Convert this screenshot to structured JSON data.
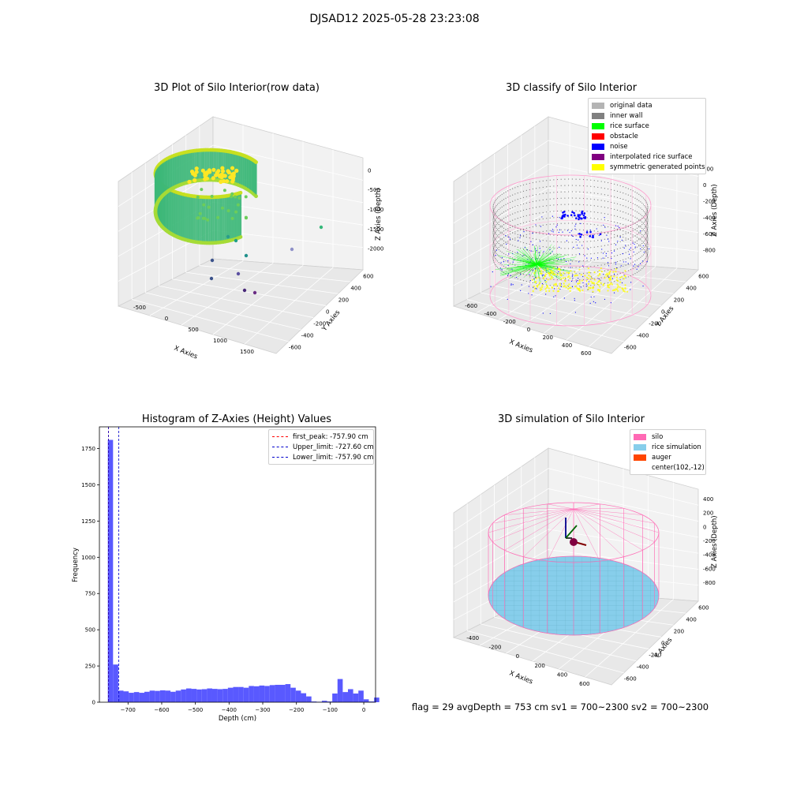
{
  "figure": {
    "suptitle": "DJSAD12 2025-05-28 23:23:08",
    "status_line": "flag = 29  avgDepth = 753 cm  sv1 = 700~2300  sv2 = 700~2300"
  },
  "chart_data": [
    {
      "type": "scatter3d",
      "title": "3D Plot of Silo Interior(row data)",
      "xlabel": "X Axies",
      "ylabel": "Y Axies",
      "zlabel": "Z Axies (Depth)",
      "x_ticks": [
        "-500",
        "0",
        "500",
        "1000",
        "1500"
      ],
      "y_ticks": [
        "-600",
        "-400",
        "-200",
        "0",
        "200",
        "400",
        "600"
      ],
      "z_ticks": [
        "0",
        "-500",
        "-1000",
        "-1500",
        "-2000"
      ],
      "xlim": [
        -700,
        1800
      ],
      "ylim": [
        -700,
        700
      ],
      "zlim": [
        -2200,
        100
      ],
      "colormap": "viridis",
      "point_color": "#21a685"
    },
    {
      "type": "scatter3d",
      "title": "3D classify of Silo Interior",
      "xlabel": "X Axies",
      "ylabel": "Y Axies",
      "zlabel": "Z Axies (Depth)",
      "x_ticks": [
        "-600",
        "-400",
        "-200",
        "0",
        "200",
        "400",
        "600"
      ],
      "y_ticks": [
        "-600",
        "-400",
        "-200",
        "0",
        "200",
        "400",
        "600"
      ],
      "z_ticks": [
        "200",
        "0",
        "-200",
        "-400",
        "-600",
        "-800"
      ],
      "legend": [
        {
          "label": "original data",
          "color": "#b4b4b4"
        },
        {
          "label": "inner wall",
          "color": "#808080"
        },
        {
          "label": "rice surface",
          "color": "#00ff00"
        },
        {
          "label": "obstacle",
          "color": "#ff0000"
        },
        {
          "label": "noise",
          "color": "#0000ff"
        },
        {
          "label": "interpolated rice surface",
          "color": "#800080"
        },
        {
          "label": "symmetric generated points",
          "color": "#ffff00"
        }
      ],
      "outline_color": "#ff99cc"
    },
    {
      "type": "bar",
      "title": "Histogram of Z-Axies (Height) Values",
      "xlabel": "Depth (cm)",
      "ylabel": "Frequency",
      "xlim": [
        -785,
        35
      ],
      "ylim": [
        0,
        1900
      ],
      "x_ticks": [
        -700,
        -600,
        -500,
        -400,
        -300,
        -200,
        -100,
        0
      ],
      "y_ticks": [
        0,
        250,
        500,
        750,
        1000,
        1250,
        1500,
        1750
      ],
      "bin_width": 15.5,
      "bin_start": -760,
      "values": [
        1810,
        260,
        80,
        75,
        65,
        70,
        65,
        72,
        80,
        78,
        82,
        80,
        72,
        80,
        88,
        95,
        92,
        88,
        90,
        95,
        92,
        90,
        92,
        100,
        105,
        105,
        100,
        112,
        110,
        115,
        112,
        118,
        120,
        120,
        125,
        100,
        80,
        62,
        40,
        5,
        3,
        10,
        5,
        60,
        160,
        70,
        90,
        60,
        80,
        20,
        5,
        32
      ],
      "bar_color": "#5050ff",
      "lines": [
        {
          "label": "first_peak: -757.90 cm",
          "x": -757.9,
          "color": "#ff0000"
        },
        {
          "label": "Upper_limit: -727.60 cm",
          "x": -727.6,
          "color": "#0000cc"
        },
        {
          "label": "Lower_limit: -757.90 cm",
          "x": -757.9,
          "color": "#0000cc"
        }
      ]
    },
    {
      "type": "surface3d",
      "title": "3D simulation of Silo Interior",
      "xlabel": "X Axies",
      "ylabel": "Y Axies",
      "zlabel": "Z Axies (Depth)",
      "x_ticks": [
        "-400",
        "-200",
        "0",
        "200",
        "400",
        "600"
      ],
      "y_ticks": [
        "-600",
        "-400",
        "-200",
        "0",
        "200",
        "400",
        "600"
      ],
      "z_ticks": [
        "400",
        "200",
        "0",
        "-200",
        "-400",
        "-600",
        "-800"
      ],
      "legend": [
        {
          "label": "silo",
          "color": "#ff69b4"
        },
        {
          "label": "rice simulation",
          "color": "#87ceeb"
        },
        {
          "label": "auger",
          "color": "#ff4500"
        },
        {
          "label": "center(102,-12)",
          "color": ""
        }
      ]
    }
  ]
}
